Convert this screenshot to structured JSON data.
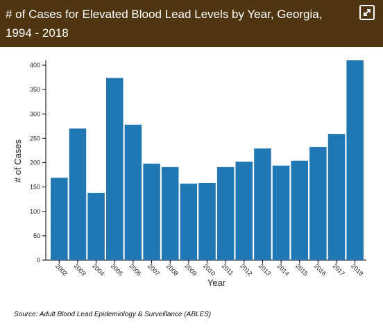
{
  "chart_data": {
    "type": "bar",
    "title": "# of Cases for Elevated Blood Lead Levels by Year, Georgia, 1994 - 2018",
    "categories": [
      "2002",
      "2003",
      "2004",
      "2005",
      "2006",
      "2007",
      "2008",
      "2009",
      "2010",
      "2011",
      "2012",
      "2013",
      "2014",
      "2015",
      "2016",
      "2017",
      "2018"
    ],
    "values": [
      169,
      270,
      138,
      374,
      278,
      198,
      191,
      157,
      158,
      191,
      202,
      229,
      194,
      204,
      232,
      259,
      410
    ],
    "color": "#1f77b4",
    "ylim": [
      0,
      410
    ],
    "yticks": [
      0,
      50,
      100,
      150,
      200,
      250,
      300,
      350,
      400
    ],
    "xlabel": "Year",
    "ylabel": "# of Cases",
    "source": "Source: Adult Blood Lead Epidemiology & Surveillance (ABLES)"
  }
}
